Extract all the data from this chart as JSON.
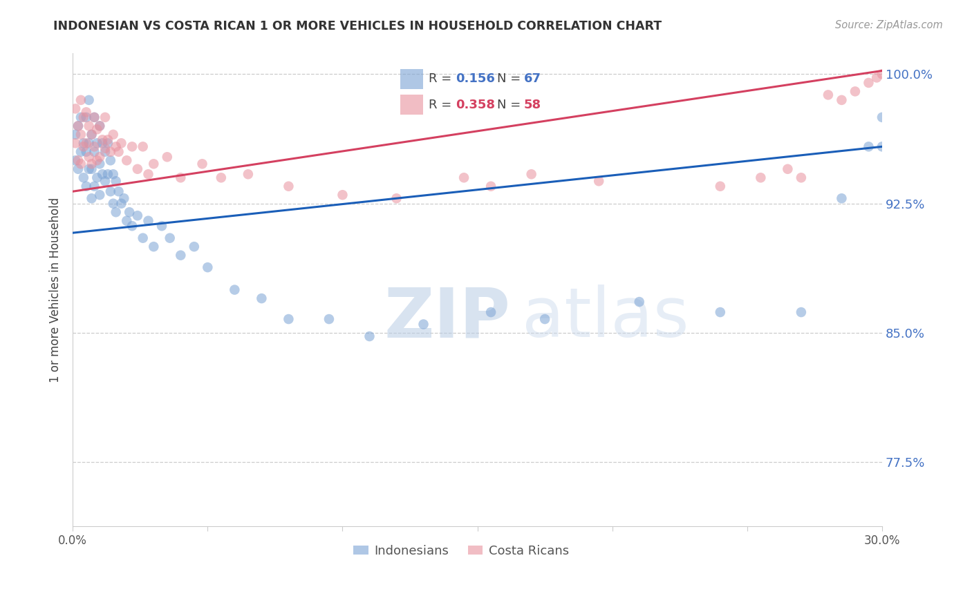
{
  "title": "INDONESIAN VS COSTA RICAN 1 OR MORE VEHICLES IN HOUSEHOLD CORRELATION CHART",
  "source": "Source: ZipAtlas.com",
  "ylabel": "1 or more Vehicles in Household",
  "xlim": [
    0.0,
    0.3
  ],
  "ylim": [
    0.738,
    1.012
  ],
  "yticks": [
    1.0,
    0.925,
    0.85,
    0.775
  ],
  "ytick_labels": [
    "100.0%",
    "92.5%",
    "85.0%",
    "77.5%"
  ],
  "xticks": [
    0.0,
    0.05,
    0.1,
    0.15,
    0.2,
    0.25,
    0.3
  ],
  "xtick_labels": [
    "0.0%",
    "",
    "",
    "",
    "",
    "",
    "30.0%"
  ],
  "legend_blue_r": "0.156",
  "legend_blue_n": "67",
  "legend_pink_r": "0.358",
  "legend_pink_n": "58",
  "blue_color": "#7ba3d4",
  "pink_color": "#e8919e",
  "line_blue_color": "#1a5eb8",
  "line_pink_color": "#d44060",
  "watermark_zip": "ZIP",
  "watermark_atlas": "atlas",
  "indonesian_x": [
    0.001,
    0.001,
    0.002,
    0.002,
    0.003,
    0.003,
    0.004,
    0.004,
    0.005,
    0.005,
    0.005,
    0.006,
    0.006,
    0.006,
    0.007,
    0.007,
    0.007,
    0.008,
    0.008,
    0.008,
    0.009,
    0.009,
    0.01,
    0.01,
    0.01,
    0.011,
    0.011,
    0.012,
    0.012,
    0.013,
    0.013,
    0.014,
    0.014,
    0.015,
    0.015,
    0.016,
    0.016,
    0.017,
    0.018,
    0.019,
    0.02,
    0.021,
    0.022,
    0.024,
    0.026,
    0.028,
    0.03,
    0.033,
    0.036,
    0.04,
    0.045,
    0.05,
    0.06,
    0.07,
    0.08,
    0.095,
    0.11,
    0.13,
    0.155,
    0.175,
    0.21,
    0.24,
    0.27,
    0.285,
    0.295,
    0.3,
    0.3
  ],
  "indonesian_y": [
    0.965,
    0.95,
    0.97,
    0.945,
    0.975,
    0.955,
    0.96,
    0.94,
    0.975,
    0.955,
    0.935,
    0.985,
    0.96,
    0.945,
    0.965,
    0.945,
    0.928,
    0.975,
    0.955,
    0.935,
    0.96,
    0.94,
    0.97,
    0.948,
    0.93,
    0.96,
    0.942,
    0.955,
    0.938,
    0.96,
    0.942,
    0.95,
    0.932,
    0.942,
    0.925,
    0.938,
    0.92,
    0.932,
    0.925,
    0.928,
    0.915,
    0.92,
    0.912,
    0.918,
    0.905,
    0.915,
    0.9,
    0.912,
    0.905,
    0.895,
    0.9,
    0.888,
    0.875,
    0.87,
    0.858,
    0.858,
    0.848,
    0.855,
    0.862,
    0.858,
    0.868,
    0.862,
    0.862,
    0.928,
    0.958,
    0.975,
    0.958
  ],
  "costarican_x": [
    0.001,
    0.001,
    0.002,
    0.002,
    0.003,
    0.003,
    0.003,
    0.004,
    0.004,
    0.005,
    0.005,
    0.006,
    0.006,
    0.007,
    0.007,
    0.008,
    0.008,
    0.009,
    0.009,
    0.01,
    0.01,
    0.011,
    0.012,
    0.012,
    0.013,
    0.014,
    0.015,
    0.016,
    0.017,
    0.018,
    0.02,
    0.022,
    0.024,
    0.026,
    0.028,
    0.03,
    0.035,
    0.04,
    0.048,
    0.055,
    0.065,
    0.08,
    0.1,
    0.12,
    0.145,
    0.155,
    0.17,
    0.195,
    0.24,
    0.255,
    0.265,
    0.27,
    0.28,
    0.285,
    0.29,
    0.295,
    0.298,
    0.3
  ],
  "costarican_y": [
    0.98,
    0.96,
    0.97,
    0.95,
    0.985,
    0.965,
    0.948,
    0.975,
    0.958,
    0.978,
    0.96,
    0.97,
    0.952,
    0.965,
    0.948,
    0.975,
    0.958,
    0.968,
    0.95,
    0.97,
    0.952,
    0.962,
    0.975,
    0.957,
    0.962,
    0.955,
    0.965,
    0.958,
    0.955,
    0.96,
    0.95,
    0.958,
    0.945,
    0.958,
    0.942,
    0.948,
    0.952,
    0.94,
    0.948,
    0.94,
    0.942,
    0.935,
    0.93,
    0.928,
    0.94,
    0.935,
    0.942,
    0.938,
    0.935,
    0.94,
    0.945,
    0.94,
    0.988,
    0.985,
    0.99,
    0.995,
    0.998,
    1.0
  ],
  "blue_line_x0": 0.0,
  "blue_line_y0": 0.908,
  "blue_line_x1": 0.3,
  "blue_line_y1": 0.958,
  "pink_line_x0": 0.0,
  "pink_line_y0": 0.932,
  "pink_line_x1": 0.3,
  "pink_line_y1": 1.002
}
